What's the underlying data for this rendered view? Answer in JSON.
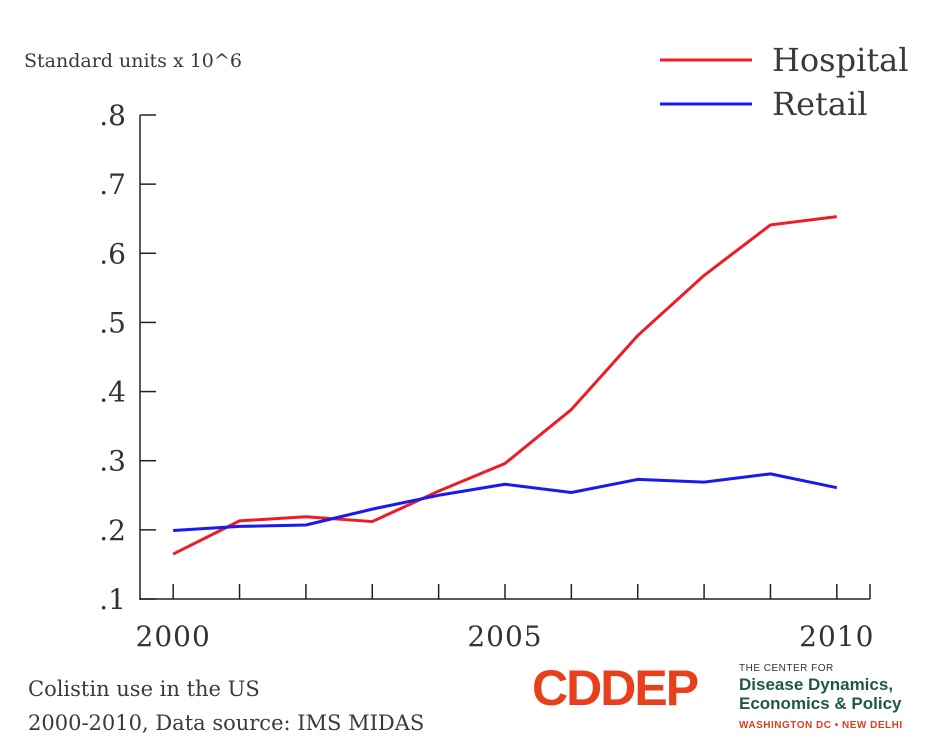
{
  "chart_data": {
    "type": "line",
    "ylabel": "Standard units x 10^6",
    "x": [
      2000,
      2001,
      2002,
      2003,
      2004,
      2005,
      2006,
      2007,
      2008,
      2009,
      2010
    ],
    "xlim": [
      1999.5,
      2010.5
    ],
    "ylim": [
      0.1,
      0.8
    ],
    "yticks": [
      0.1,
      0.2,
      0.3,
      0.4,
      0.5,
      0.6,
      0.7,
      0.8
    ],
    "ytick_labels": [
      ".1",
      ".2",
      ".3",
      ".4",
      ".5",
      ".6",
      ".7",
      ".8"
    ],
    "xtick_labels": [
      {
        "value": 2000,
        "label": "2000"
      },
      {
        "value": 2005,
        "label": "2005"
      },
      {
        "value": 2010,
        "label": "2010"
      }
    ],
    "legend_position": "top-right",
    "grid": false,
    "series": [
      {
        "name": "Hospital",
        "color": "#ee1c25",
        "values": [
          0.165,
          0.213,
          0.219,
          0.212,
          0.256,
          0.296,
          0.374,
          0.481,
          0.568,
          0.641,
          0.653
        ]
      },
      {
        "name": "Retail",
        "color": "#1a1aee",
        "values": [
          0.199,
          0.205,
          0.207,
          0.23,
          0.25,
          0.266,
          0.254,
          0.273,
          0.269,
          0.281,
          0.261
        ]
      }
    ]
  },
  "caption": {
    "line1": "Colistin use in the US",
    "line2": "2000-2010, Data source: IMS MIDAS"
  },
  "logo": {
    "mark_letters": [
      "C",
      "D",
      "D",
      "E",
      "P"
    ],
    "mark_colors": [
      "#e8401c",
      "#e8401c",
      "#e8401c",
      "#e8401c",
      "#e8401c"
    ],
    "small_line": "THE CENTER FOR",
    "main_line1": "Disease Dynamics,",
    "main_line2": "Economics & Policy",
    "location": "WASHINGTON DC • NEW DELHI"
  }
}
